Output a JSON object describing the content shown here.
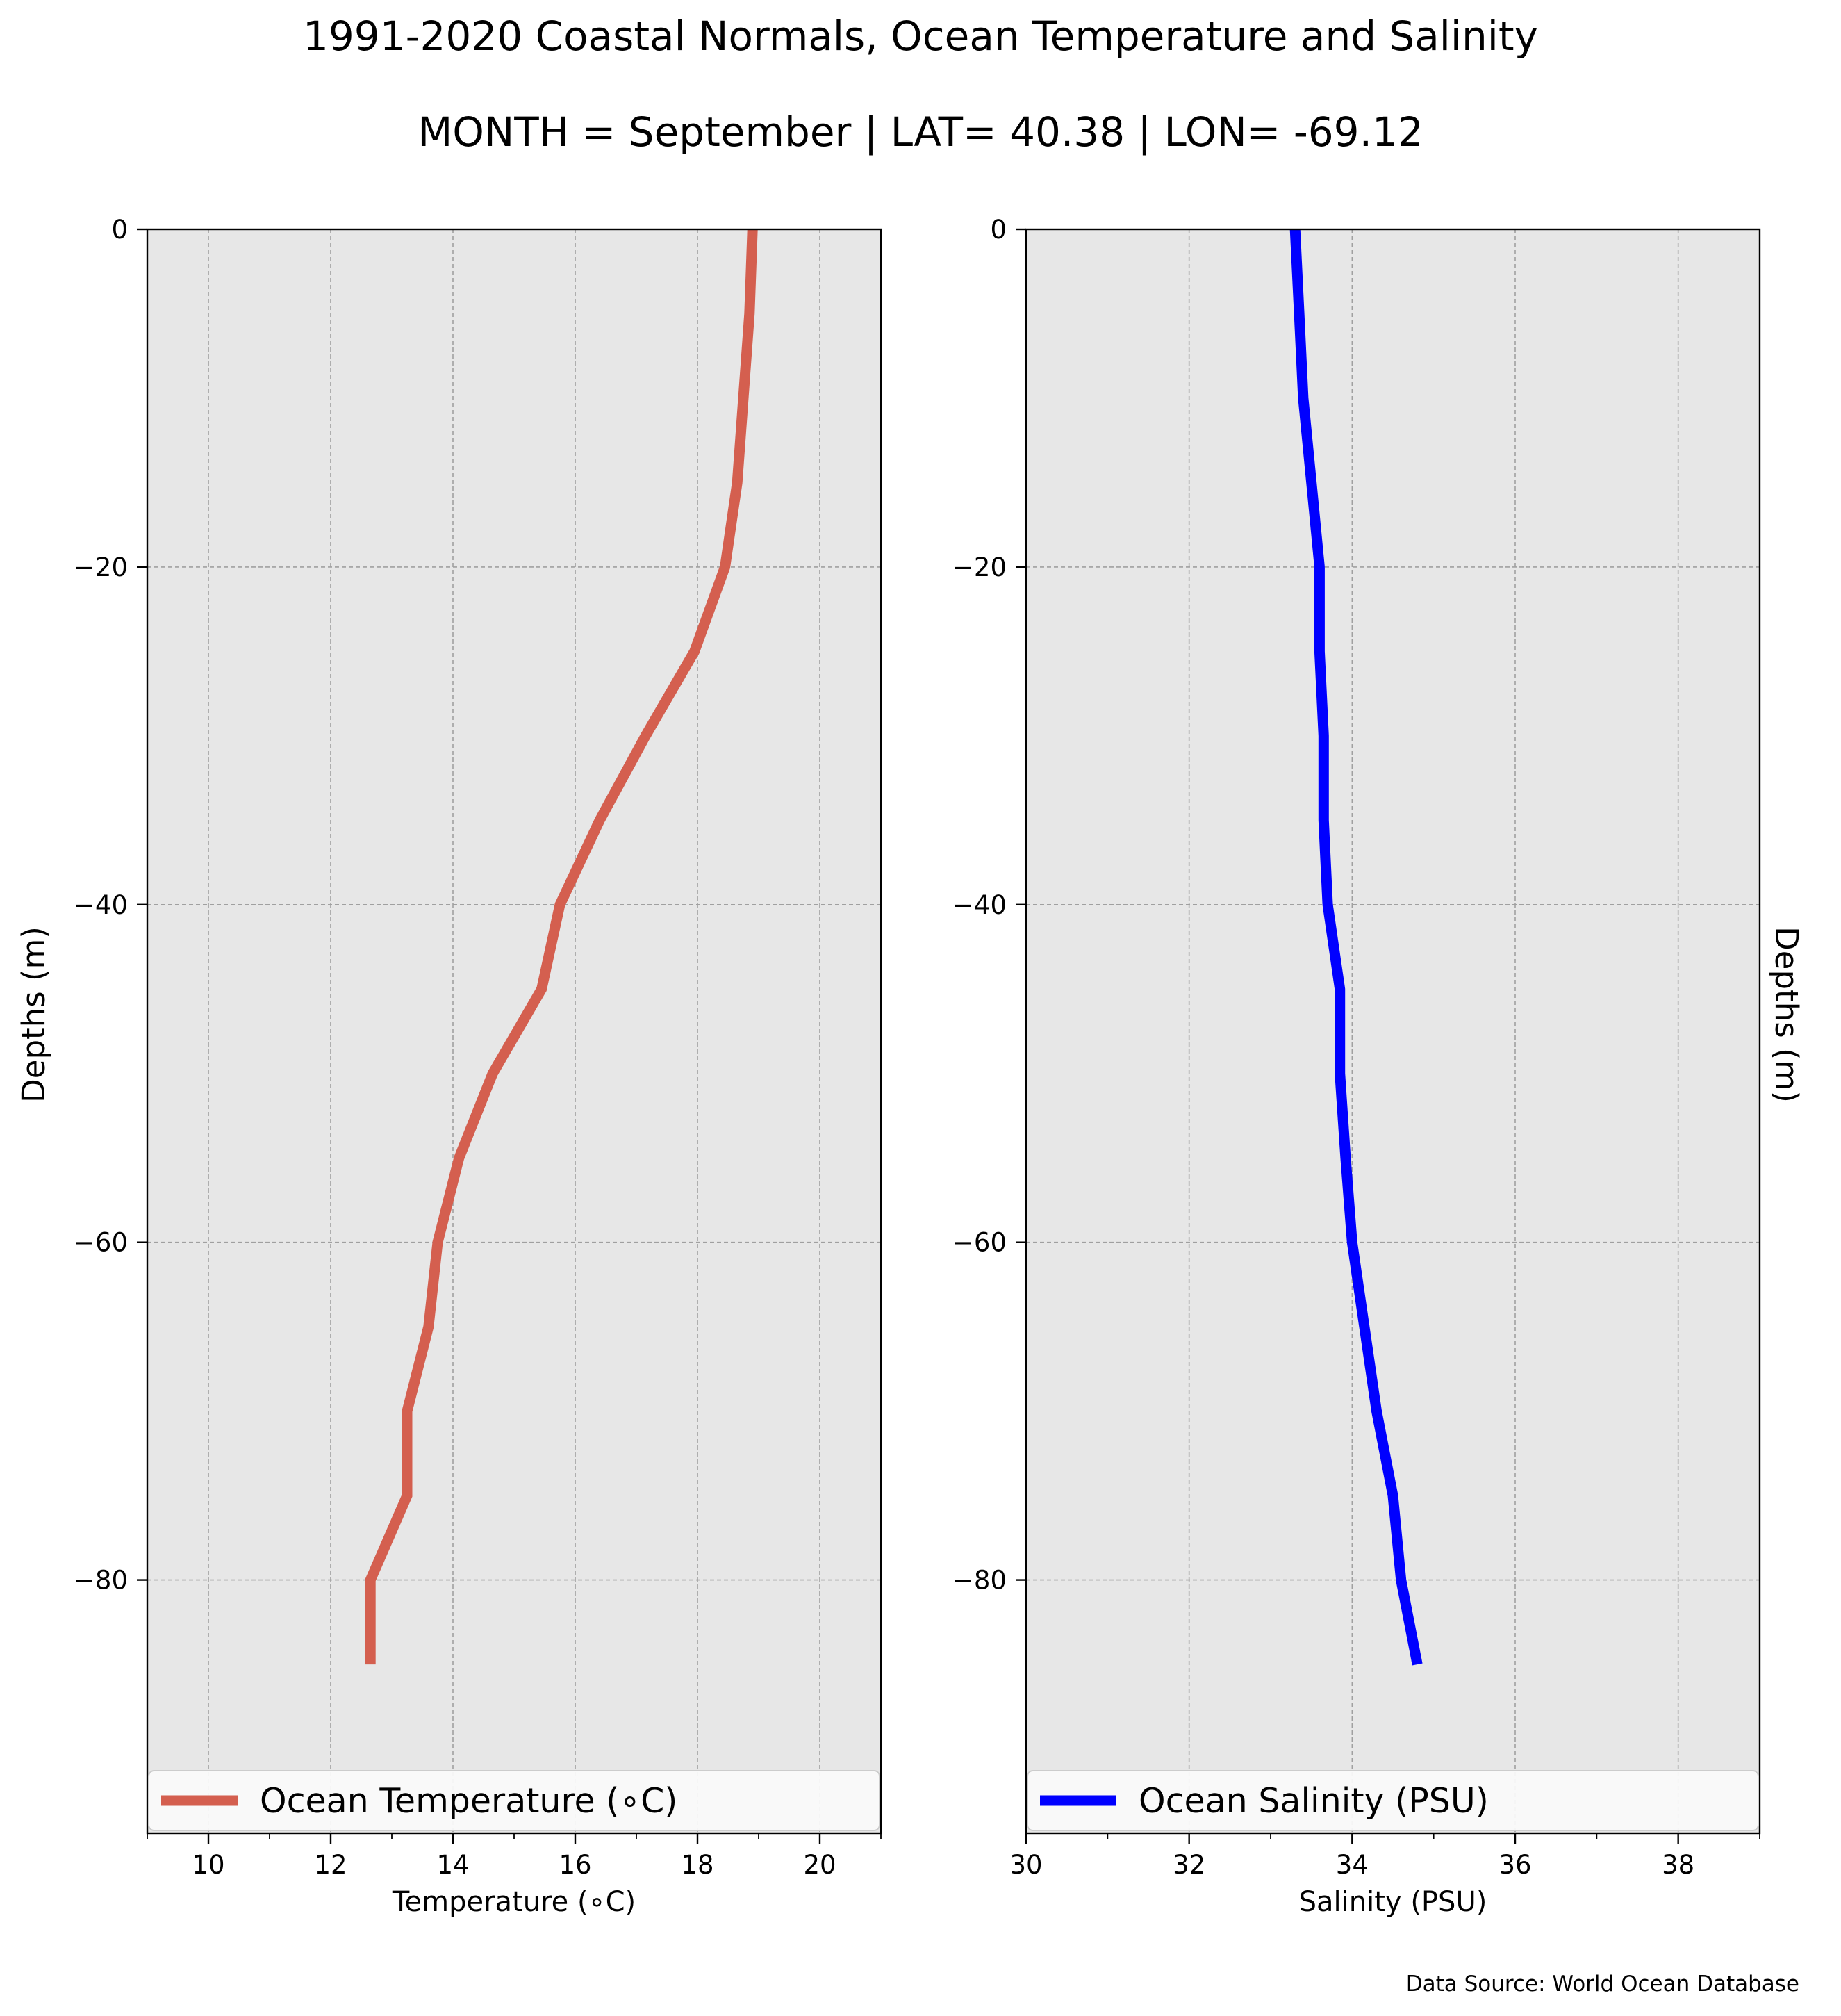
{
  "figure": {
    "title": "1991-2020 Coastal Normals, Ocean Temperature and Salinity",
    "subtitle": "MONTH = September | LAT= 40.38 | LON= -69.12",
    "source": "Data Source: World Ocean Database"
  },
  "chart_data": [
    {
      "type": "line",
      "xlabel": "Temperature (∘C)",
      "ylabel": "Depths (m)",
      "xlim": [
        9,
        21
      ],
      "ylim": [
        -95,
        0
      ],
      "x_ticks": [
        10,
        12,
        14,
        16,
        18,
        20
      ],
      "x_minor_ticks": [
        9,
        11,
        13,
        15,
        17,
        19,
        21
      ],
      "y_ticks": [
        0,
        -20,
        -40,
        -60,
        -80
      ],
      "y_tick_labels": [
        "0",
        "−20",
        "−40",
        "−60",
        "−80"
      ],
      "grid": true,
      "legend_position": "bottom",
      "series": [
        {
          "name": "Ocean Temperature (∘C)",
          "color": "#d45f4f",
          "x": [
            18.9,
            18.85,
            18.75,
            18.65,
            18.45,
            17.95,
            17.15,
            16.4,
            15.75,
            15.45,
            14.65,
            14.1,
            13.75,
            13.6,
            13.25,
            13.25,
            12.65,
            12.65
          ],
          "y": [
            0,
            -5,
            -10,
            -15,
            -20,
            -25,
            -30,
            -35,
            -40,
            -45,
            -50,
            -55,
            -60,
            -65,
            -70,
            -75,
            -80,
            -85
          ]
        }
      ]
    },
    {
      "type": "line",
      "xlabel": "Salinity (PSU)",
      "ylabel": "Depths (m)",
      "xlim": [
        30,
        39
      ],
      "ylim": [
        -95,
        0
      ],
      "x_ticks": [
        30,
        32,
        34,
        36,
        38
      ],
      "x_minor_ticks": [
        31,
        33,
        35,
        37,
        39
      ],
      "y_ticks": [
        0,
        -20,
        -40,
        -60,
        -80
      ],
      "y_tick_labels": [
        "0",
        "−20",
        "−40",
        "−60",
        "−80"
      ],
      "grid": true,
      "legend_position": "bottom",
      "series": [
        {
          "name": "Ocean Salinity (PSU)",
          "color": "#0000ff",
          "x": [
            33.3,
            33.35,
            33.4,
            33.5,
            33.6,
            33.6,
            33.65,
            33.65,
            33.7,
            33.85,
            33.85,
            33.92,
            34.0,
            34.15,
            34.3,
            34.5,
            34.6,
            34.8
          ],
          "y": [
            0,
            -5,
            -10,
            -15,
            -20,
            -25,
            -30,
            -35,
            -40,
            -45,
            -50,
            -55,
            -60,
            -65,
            -70,
            -75,
            -80,
            -85
          ]
        }
      ]
    }
  ]
}
